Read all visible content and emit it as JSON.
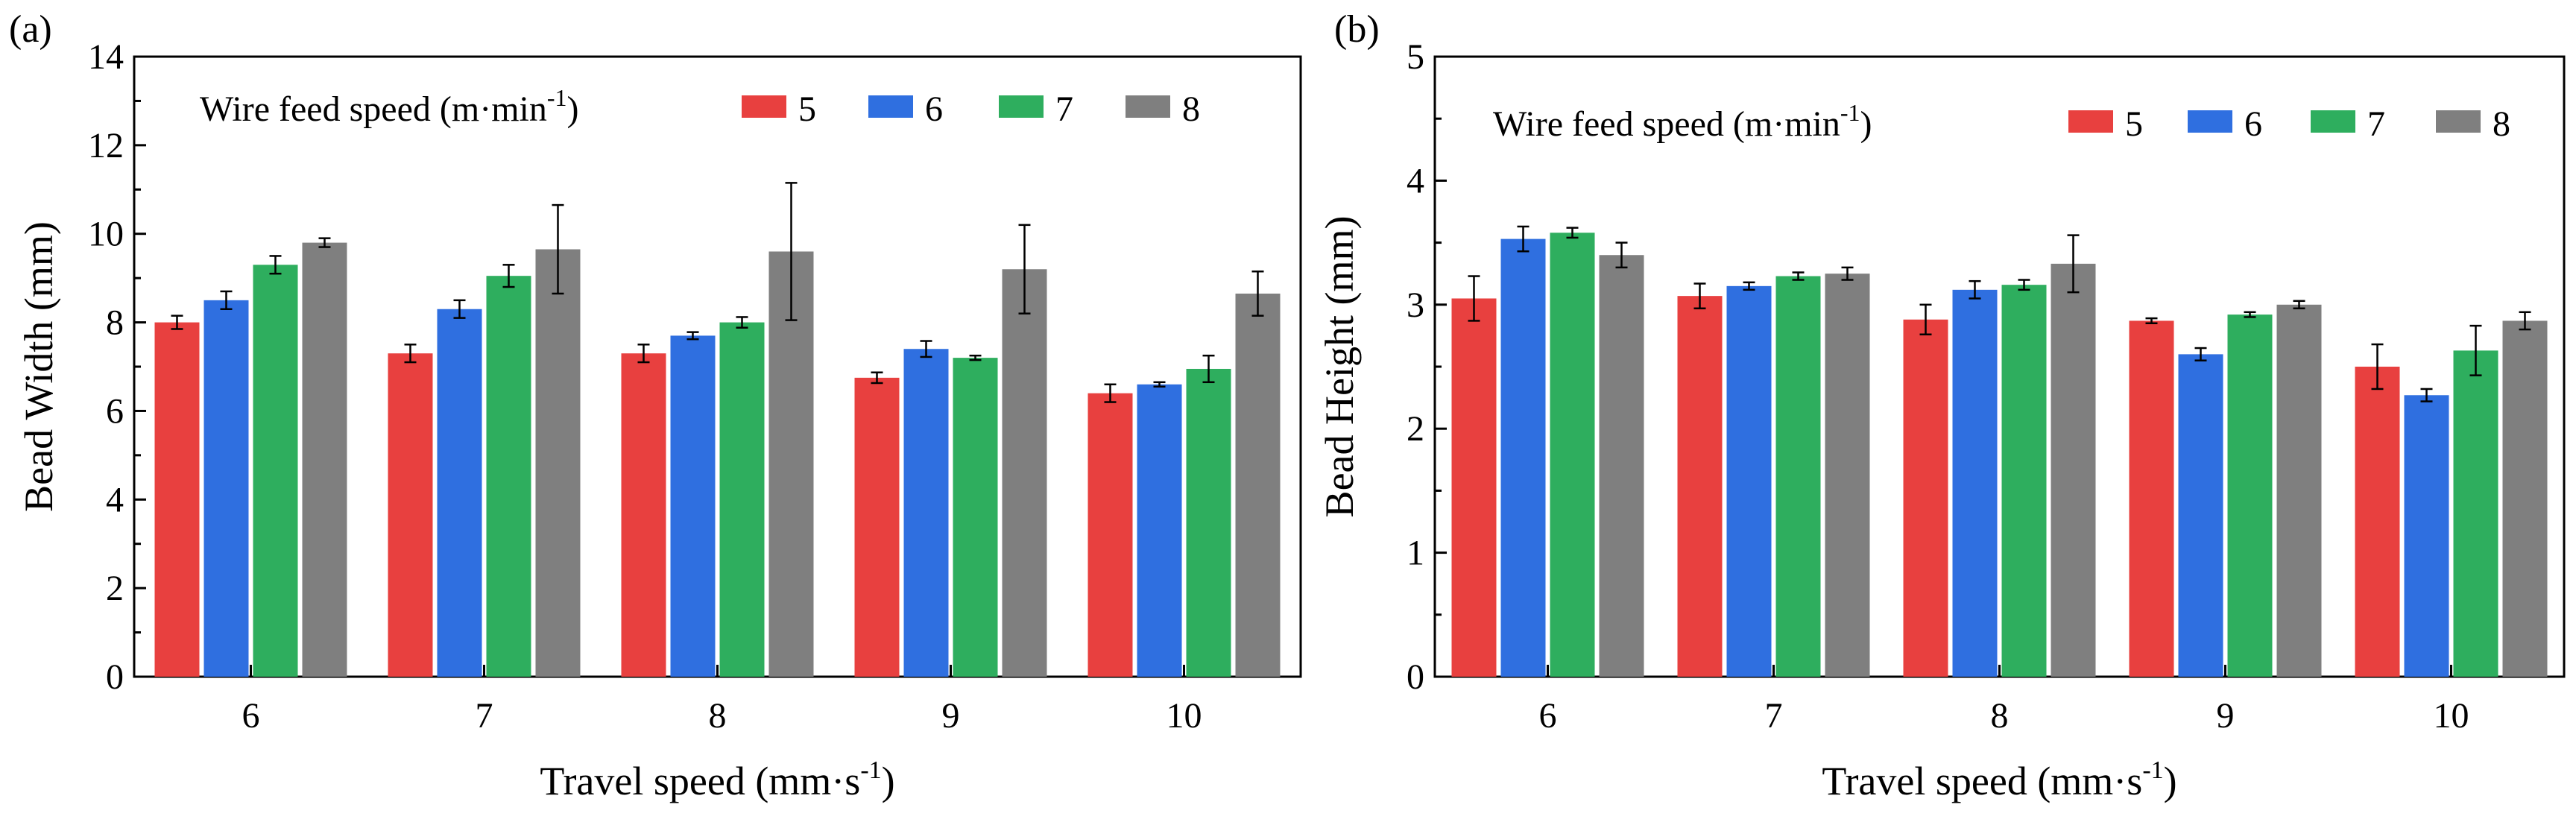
{
  "chart_data": [
    {
      "panel": "(a)",
      "type": "bar",
      "xlabel": "Travel speed (mm·s",
      "xlabel_sup": "-1",
      "xlabel_end": ")",
      "ylabel": "Bead Width (mm)",
      "ylim": [
        0,
        14
      ],
      "yticks": [
        0,
        2,
        4,
        6,
        8,
        10,
        12,
        14
      ],
      "categories": [
        "6",
        "7",
        "8",
        "9",
        "10"
      ],
      "legend_title": "Wire feed speed (m·min",
      "legend_title_sup": "-1",
      "legend_title_end": ")",
      "series": [
        {
          "name": "5",
          "color": "#E8403F",
          "values": [
            8.0,
            7.3,
            7.3,
            6.75,
            6.4
          ],
          "errors": [
            0.15,
            0.2,
            0.2,
            0.12,
            0.2
          ]
        },
        {
          "name": "6",
          "color": "#2F6FE0",
          "values": [
            8.5,
            8.3,
            7.7,
            7.4,
            6.6
          ],
          "errors": [
            0.2,
            0.2,
            0.08,
            0.18,
            0.05
          ]
        },
        {
          "name": "7",
          "color": "#2EAE5E",
          "values": [
            9.3,
            9.05,
            8.0,
            7.2,
            6.95
          ],
          "errors": [
            0.2,
            0.25,
            0.12,
            0.05,
            0.3
          ]
        },
        {
          "name": "8",
          "color": "#7F7F7F",
          "values": [
            9.8,
            9.65,
            9.6,
            9.2,
            8.65
          ],
          "errors": [
            0.1,
            1.0,
            1.55,
            1.0,
            0.5
          ]
        }
      ]
    },
    {
      "panel": "(b)",
      "type": "bar",
      "xlabel": "Travel speed (mm·s",
      "xlabel_sup": "-1",
      "xlabel_end": ")",
      "ylabel": "Bead Height (mm)",
      "ylim": [
        0,
        5
      ],
      "yticks": [
        0,
        1,
        2,
        3,
        4,
        5
      ],
      "categories": [
        "6",
        "7",
        "8",
        "9",
        "10"
      ],
      "legend_title": "Wire feed speed (m·min",
      "legend_title_sup": "-1",
      "legend_title_end": ")",
      "series": [
        {
          "name": "5",
          "color": "#E8403F",
          "values": [
            3.05,
            3.07,
            2.88,
            2.87,
            2.5
          ],
          "errors": [
            0.18,
            0.1,
            0.12,
            0.02,
            0.18
          ]
        },
        {
          "name": "6",
          "color": "#2F6FE0",
          "values": [
            3.53,
            3.15,
            3.12,
            2.6,
            2.27
          ],
          "errors": [
            0.1,
            0.03,
            0.07,
            0.05,
            0.05
          ]
        },
        {
          "name": "7",
          "color": "#2EAE5E",
          "values": [
            3.58,
            3.23,
            3.16,
            2.92,
            2.63
          ],
          "errors": [
            0.04,
            0.03,
            0.04,
            0.02,
            0.2
          ]
        },
        {
          "name": "8",
          "color": "#7F7F7F",
          "values": [
            3.4,
            3.25,
            3.33,
            3.0,
            2.87
          ],
          "errors": [
            0.1,
            0.05,
            0.23,
            0.03,
            0.07
          ]
        }
      ]
    }
  ]
}
